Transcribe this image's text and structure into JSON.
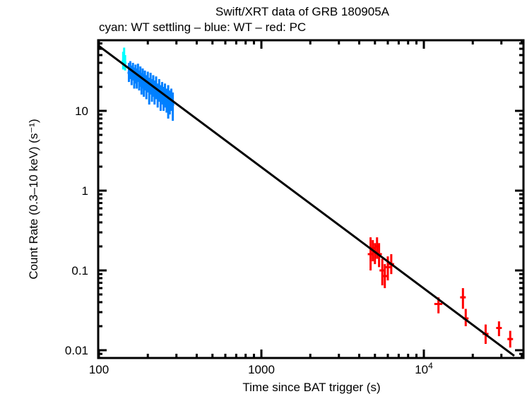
{
  "chart_data": {
    "type": "scatter",
    "title": "Swift/XRT data of GRB 180905A",
    "subtitle": "cyan: WT settling – blue: WT – red: PC",
    "xlabel": "Time since BAT trigger (s)",
    "ylabel": "Count Rate (0.3–10 keV) (s⁻¹)",
    "xscale": "log",
    "yscale": "log",
    "xlim": [
      100,
      40000
    ],
    "ylim": [
      0.0085,
      68
    ],
    "x_ticks": [
      {
        "v": 100,
        "label": "100"
      },
      {
        "v": 1000,
        "label": "1000"
      },
      {
        "v": 10000,
        "label": "10⁴"
      }
    ],
    "y_ticks": [
      {
        "v": 10,
        "label": "10"
      },
      {
        "v": 1,
        "label": "1"
      },
      {
        "v": 0.1,
        "label": "0.1"
      },
      {
        "v": 0.01,
        "label": "0.01"
      }
    ],
    "grid": false,
    "series": [
      {
        "name": "WT settling",
        "color": "#00ffff",
        "points": [
          {
            "x": 141,
            "y": 42,
            "ylo": 33,
            "yhi": 55
          },
          {
            "x": 143,
            "y": 48,
            "ylo": 38,
            "yhi": 62
          },
          {
            "x": 145,
            "y": 40,
            "ylo": 32,
            "yhi": 50
          }
        ]
      },
      {
        "name": "WT",
        "color": "#0080ff",
        "points": [
          {
            "x": 153,
            "y": 30,
            "ylo": 23,
            "yhi": 40
          },
          {
            "x": 156,
            "y": 33,
            "ylo": 25,
            "yhi": 42
          },
          {
            "x": 159,
            "y": 28,
            "ylo": 21,
            "yhi": 37
          },
          {
            "x": 162,
            "y": 31,
            "ylo": 24,
            "yhi": 40
          },
          {
            "x": 165,
            "y": 26,
            "ylo": 19,
            "yhi": 35
          },
          {
            "x": 168,
            "y": 29,
            "ylo": 22,
            "yhi": 38
          },
          {
            "x": 171,
            "y": 25,
            "ylo": 19,
            "yhi": 34
          },
          {
            "x": 174,
            "y": 30,
            "ylo": 23,
            "yhi": 39
          },
          {
            "x": 177,
            "y": 24,
            "ylo": 18,
            "yhi": 32
          },
          {
            "x": 180,
            "y": 27,
            "ylo": 20,
            "yhi": 36
          },
          {
            "x": 183,
            "y": 22,
            "ylo": 16,
            "yhi": 30
          },
          {
            "x": 186,
            "y": 26,
            "ylo": 19,
            "yhi": 34
          },
          {
            "x": 189,
            "y": 21,
            "ylo": 15,
            "yhi": 29
          },
          {
            "x": 192,
            "y": 24,
            "ylo": 18,
            "yhi": 32
          },
          {
            "x": 196,
            "y": 20,
            "ylo": 14,
            "yhi": 28
          },
          {
            "x": 200,
            "y": 23,
            "ylo": 17,
            "yhi": 31
          },
          {
            "x": 204,
            "y": 19,
            "ylo": 12,
            "yhi": 26
          },
          {
            "x": 208,
            "y": 22,
            "ylo": 16,
            "yhi": 30
          },
          {
            "x": 212,
            "y": 18,
            "ylo": 13,
            "yhi": 25
          },
          {
            "x": 216,
            "y": 21,
            "ylo": 15,
            "yhi": 28
          },
          {
            "x": 220,
            "y": 17,
            "ylo": 12,
            "yhi": 24
          },
          {
            "x": 225,
            "y": 20,
            "ylo": 14,
            "yhi": 27
          },
          {
            "x": 230,
            "y": 16,
            "ylo": 11,
            "yhi": 22
          },
          {
            "x": 235,
            "y": 18,
            "ylo": 13,
            "yhi": 25
          },
          {
            "x": 240,
            "y": 15,
            "ylo": 10,
            "yhi": 21
          },
          {
            "x": 245,
            "y": 17,
            "ylo": 12,
            "yhi": 23
          },
          {
            "x": 250,
            "y": 14,
            "ylo": 10,
            "yhi": 20
          },
          {
            "x": 255,
            "y": 16,
            "ylo": 11,
            "yhi": 22
          },
          {
            "x": 261,
            "y": 14,
            "ylo": 9.5,
            "yhi": 19
          },
          {
            "x": 267,
            "y": 15,
            "ylo": 8,
            "yhi": 21
          },
          {
            "x": 273,
            "y": 13,
            "ylo": 9,
            "yhi": 18
          },
          {
            "x": 279,
            "y": 14,
            "ylo": 10,
            "yhi": 19
          },
          {
            "x": 285,
            "y": 12,
            "ylo": 7.5,
            "yhi": 17
          }
        ]
      },
      {
        "name": "PC",
        "color": "#ff0000",
        "points": [
          {
            "x": 4700,
            "y": 0.16,
            "ylo": 0.1,
            "yhi": 0.26,
            "xlo": 4600,
            "xhi": 4800
          },
          {
            "x": 4850,
            "y": 0.19,
            "ylo": 0.13,
            "yhi": 0.24,
            "xlo": 4780,
            "xhi": 4950
          },
          {
            "x": 5000,
            "y": 0.17,
            "ylo": 0.12,
            "yhi": 0.22,
            "xlo": 4950,
            "xhi": 5100
          },
          {
            "x": 5150,
            "y": 0.2,
            "ylo": 0.14,
            "yhi": 0.26,
            "xlo": 5100,
            "xhi": 5250
          },
          {
            "x": 5300,
            "y": 0.16,
            "ylo": 0.11,
            "yhi": 0.22,
            "xlo": 5250,
            "xhi": 5400
          },
          {
            "x": 5550,
            "y": 0.1,
            "ylo": 0.065,
            "yhi": 0.14,
            "xlo": 5450,
            "xhi": 5650
          },
          {
            "x": 5750,
            "y": 0.085,
            "ylo": 0.06,
            "yhi": 0.12,
            "xlo": 5650,
            "xhi": 5850
          },
          {
            "x": 6000,
            "y": 0.11,
            "ylo": 0.075,
            "yhi": 0.15,
            "xlo": 5900,
            "xhi": 6100
          },
          {
            "x": 6300,
            "y": 0.12,
            "ylo": 0.09,
            "yhi": 0.16,
            "xlo": 6200,
            "xhi": 6400
          },
          {
            "x": 12300,
            "y": 0.038,
            "ylo": 0.029,
            "yhi": 0.046,
            "xlo": 11600,
            "xhi": 13000
          },
          {
            "x": 17400,
            "y": 0.046,
            "ylo": 0.033,
            "yhi": 0.06,
            "xlo": 17100,
            "xhi": 17700
          },
          {
            "x": 18100,
            "y": 0.025,
            "ylo": 0.02,
            "yhi": 0.033,
            "xlo": 17700,
            "xhi": 18600
          },
          {
            "x": 24000,
            "y": 0.016,
            "ylo": 0.012,
            "yhi": 0.021,
            "xlo": 23000,
            "xhi": 25000
          },
          {
            "x": 29000,
            "y": 0.019,
            "ylo": 0.015,
            "yhi": 0.023,
            "xlo": 28000,
            "xhi": 30000
          },
          {
            "x": 34000,
            "y": 0.0138,
            "ylo": 0.0108,
            "yhi": 0.0175,
            "xlo": 33000,
            "xhi": 35000
          }
        ]
      }
    ],
    "fit": {
      "name": "power-law fit",
      "color": "#000000",
      "x": [
        100,
        36000
      ],
      "y": [
        65,
        0.0085
      ]
    }
  }
}
